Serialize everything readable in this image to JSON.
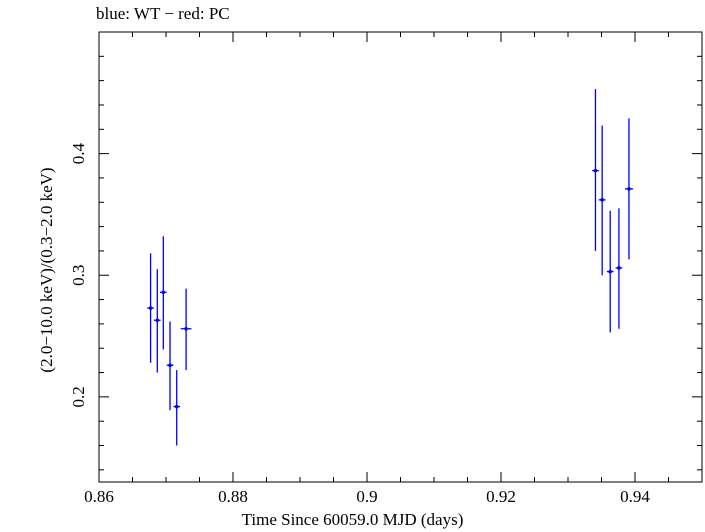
{
  "chart_data": {
    "type": "scatter",
    "title": "blue: WT − red: PC",
    "xlabel": "Time Since 60059.0 MJD (days)",
    "ylabel": "(2.0−10.0 keV)/(0.3−2.0 keV)",
    "xlim": [
      0.86,
      0.95
    ],
    "ylim": [
      0.13,
      0.5
    ],
    "xticks": [
      0.86,
      0.88,
      0.9,
      0.92,
      0.94
    ],
    "xtick_labels": [
      "0.86",
      "0.88",
      "0.9",
      "0.92",
      "0.94"
    ],
    "yticks": [
      0.2,
      0.3,
      0.4
    ],
    "ytick_labels": [
      "0.2",
      "0.3",
      "0.4"
    ],
    "grid": false,
    "series": [
      {
        "color": "#0000ff",
        "points": [
          {
            "x": 0.8677,
            "y": 0.273,
            "xerr": 0.0005,
            "ylo": 0.228,
            "yhi": 0.318
          },
          {
            "x": 0.8687,
            "y": 0.263,
            "xerr": 0.0005,
            "ylo": 0.22,
            "yhi": 0.305
          },
          {
            "x": 0.8696,
            "y": 0.286,
            "xerr": 0.0005,
            "ylo": 0.239,
            "yhi": 0.332
          },
          {
            "x": 0.8706,
            "y": 0.226,
            "xerr": 0.0005,
            "ylo": 0.189,
            "yhi": 0.262
          },
          {
            "x": 0.8716,
            "y": 0.192,
            "xerr": 0.0005,
            "ylo": 0.16,
            "yhi": 0.222
          },
          {
            "x": 0.873,
            "y": 0.256,
            "xerr": 0.0008,
            "ylo": 0.222,
            "yhi": 0.289
          },
          {
            "x": 0.9341,
            "y": 0.386,
            "xerr": 0.0005,
            "ylo": 0.32,
            "yhi": 0.453
          },
          {
            "x": 0.9351,
            "y": 0.362,
            "xerr": 0.0005,
            "ylo": 0.3,
            "yhi": 0.423
          },
          {
            "x": 0.9363,
            "y": 0.303,
            "xerr": 0.0005,
            "ylo": 0.253,
            "yhi": 0.353
          },
          {
            "x": 0.9376,
            "y": 0.306,
            "xerr": 0.0005,
            "ylo": 0.256,
            "yhi": 0.355
          },
          {
            "x": 0.9391,
            "y": 0.371,
            "xerr": 0.0006,
            "ylo": 0.313,
            "yhi": 0.429
          }
        ]
      }
    ]
  }
}
